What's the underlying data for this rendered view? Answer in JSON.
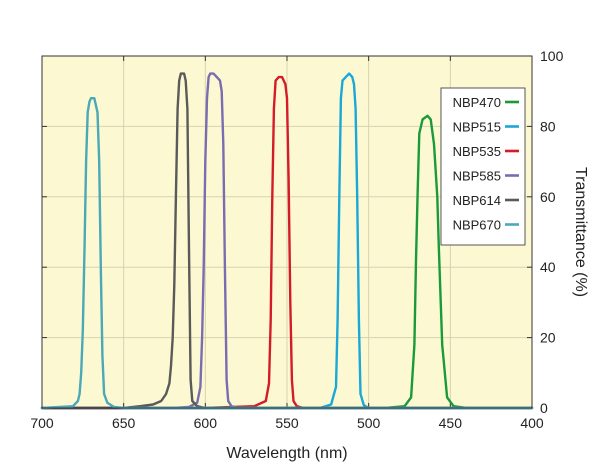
{
  "chart_data": {
    "type": "line",
    "orientation": "mirrored",
    "title": "",
    "xlabel": "Wavelength (nm)",
    "ylabel": "Transmittance (%)",
    "xlim": [
      400,
      700
    ],
    "ylim": [
      0,
      100
    ],
    "x_reversed": true,
    "x_ticks": [
      "400",
      "450",
      "500",
      "550",
      "600",
      "650",
      "700"
    ],
    "y_ticks": [
      "0",
      "20",
      "40",
      "60",
      "80",
      "100"
    ],
    "grid": true,
    "plot_background": "#fcf9d2",
    "legend_position": "top-right",
    "series": [
      {
        "name": "NBP470",
        "color": "#1a9a3a",
        "points": [
          [
            400,
            0
          ],
          [
            440,
            0
          ],
          [
            448,
            0.5
          ],
          [
            452,
            3
          ],
          [
            455,
            18
          ],
          [
            457,
            45
          ],
          [
            458,
            60
          ],
          [
            460,
            75
          ],
          [
            462,
            82
          ],
          [
            464,
            83
          ],
          [
            467,
            82
          ],
          [
            469,
            78
          ],
          [
            470,
            62
          ],
          [
            471,
            42
          ],
          [
            472,
            18
          ],
          [
            474,
            3
          ],
          [
            478,
            0.5
          ],
          [
            490,
            0
          ],
          [
            700,
            0
          ]
        ]
      },
      {
        "name": "NBP515",
        "color": "#1aa8d8",
        "points": [
          [
            400,
            0
          ],
          [
            500,
            0
          ],
          [
            503,
            0.8
          ],
          [
            505,
            4
          ],
          [
            506,
            25
          ],
          [
            507,
            60
          ],
          [
            508,
            85
          ],
          [
            509,
            92
          ],
          [
            510,
            94
          ],
          [
            512,
            95
          ],
          [
            514,
            94
          ],
          [
            516,
            93
          ],
          [
            517,
            88
          ],
          [
            518,
            60
          ],
          [
            519,
            25
          ],
          [
            520,
            6
          ],
          [
            523,
            1
          ],
          [
            530,
            0
          ],
          [
            700,
            0
          ]
        ]
      },
      {
        "name": "NBP535",
        "color": "#d41c28",
        "points": [
          [
            400,
            0
          ],
          [
            540,
            0
          ],
          [
            544,
            0.5
          ],
          [
            546,
            2
          ],
          [
            547,
            8
          ],
          [
            548,
            30
          ],
          [
            549,
            65
          ],
          [
            550,
            88
          ],
          [
            551,
            92
          ],
          [
            553,
            94
          ],
          [
            555,
            94
          ],
          [
            557,
            93
          ],
          [
            558,
            85
          ],
          [
            559,
            60
          ],
          [
            560,
            25
          ],
          [
            561,
            7
          ],
          [
            563,
            2
          ],
          [
            570,
            0.5
          ],
          [
            600,
            0
          ],
          [
            700,
            0
          ]
        ]
      },
      {
        "name": "NBP585",
        "color": "#7a6cb0",
        "points": [
          [
            400,
            0
          ],
          [
            580,
            0
          ],
          [
            584,
            0.5
          ],
          [
            586,
            2
          ],
          [
            587,
            8
          ],
          [
            588,
            40
          ],
          [
            589,
            75
          ],
          [
            590,
            90
          ],
          [
            591,
            93
          ],
          [
            593,
            94
          ],
          [
            595,
            95
          ],
          [
            597,
            95
          ],
          [
            598,
            94
          ],
          [
            599,
            88
          ],
          [
            600,
            70
          ],
          [
            601,
            40
          ],
          [
            602,
            20
          ],
          [
            603,
            6
          ],
          [
            605,
            1.5
          ],
          [
            610,
            0.3
          ],
          [
            620,
            0
          ],
          [
            700,
            0
          ]
        ]
      },
      {
        "name": "NBP614",
        "color": "#5a5a5a",
        "points": [
          [
            400,
            0
          ],
          [
            600,
            0
          ],
          [
            605,
            0.5
          ],
          [
            608,
            2
          ],
          [
            609,
            8
          ],
          [
            610,
            45
          ],
          [
            611,
            85
          ],
          [
            612,
            93
          ],
          [
            613,
            95
          ],
          [
            615,
            95
          ],
          [
            616,
            93
          ],
          [
            617,
            85
          ],
          [
            618,
            60
          ],
          [
            619,
            35
          ],
          [
            620,
            20
          ],
          [
            621,
            12
          ],
          [
            622,
            7
          ],
          [
            624,
            4
          ],
          [
            627,
            2
          ],
          [
            632,
            1
          ],
          [
            640,
            0.5
          ],
          [
            650,
            0
          ],
          [
            700,
            0
          ]
        ]
      },
      {
        "name": "NBP670",
        "color": "#4aa8b8",
        "points": [
          [
            400,
            0
          ],
          [
            650,
            0
          ],
          [
            656,
            0.3
          ],
          [
            660,
            1.5
          ],
          [
            662,
            4
          ],
          [
            663,
            15
          ],
          [
            664,
            40
          ],
          [
            665,
            70
          ],
          [
            666,
            84
          ],
          [
            668,
            88
          ],
          [
            670,
            88
          ],
          [
            671,
            87
          ],
          [
            672,
            84
          ],
          [
            673,
            70
          ],
          [
            674,
            45
          ],
          [
            675,
            22
          ],
          [
            676,
            10
          ],
          [
            677,
            4
          ],
          [
            678,
            2
          ],
          [
            681,
            0.5
          ],
          [
            700,
            0
          ]
        ]
      }
    ]
  }
}
